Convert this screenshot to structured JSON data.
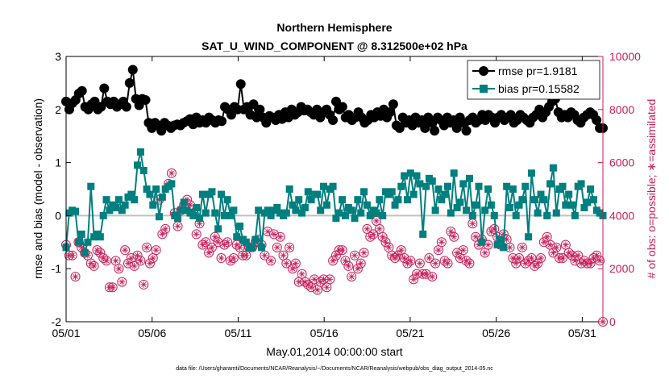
{
  "chart_data": {
    "type": "line",
    "title": "Northern Hemisphere",
    "subtitle": "SAT_U_WIND_COMPONENT @ 8.312500e+02 hPa",
    "xlabel": "May.01,2014 00:00:00 start",
    "ylabel": "rmse and bias (model - observation)",
    "ylabel_right": "# of obs: o=possible; ∗=assimilated",
    "xlim": [
      0,
      31.2
    ],
    "ylim": [
      -2,
      3
    ],
    "ylim_right": [
      0,
      10000
    ],
    "x_tick_values": [
      0,
      5,
      10,
      15,
      20,
      25,
      30
    ],
    "x_tick_labels": [
      "05/01",
      "05/06",
      "05/11",
      "05/16",
      "05/21",
      "05/26",
      "05/31"
    ],
    "y_ticks": [
      "-2",
      "-1",
      "0",
      "1",
      "2",
      "3"
    ],
    "y_ticks_right": [
      "0",
      "2000",
      "4000",
      "6000",
      "8000",
      "10000"
    ],
    "legend": [
      "rmse pr=1.9181",
      "bias pr=0.15582"
    ],
    "footnote": "data file: /Users/gharamti/Documents/NCAR/Reanalysis/~/Documents/NCAR/Reanalysis/webpub/obs_diag_output_2014-05.nc",
    "series": [
      {
        "name": "rmse",
        "color": "#000000",
        "values": [
          2.15,
          2.0,
          2.12,
          2.18,
          2.3,
          2.35,
          2.05,
          2.0,
          2.1,
          2.15,
          2.0,
          2.05,
          2.4,
          2.15,
          2.1,
          2.15,
          2.05,
          2.1,
          2.15,
          2.05,
          2.5,
          2.75,
          2.2,
          2.08,
          2.2,
          2.18,
          1.75,
          1.65,
          1.75,
          1.7,
          1.6,
          1.75,
          1.7,
          1.65,
          1.7,
          1.72,
          1.7,
          1.75,
          1.78,
          1.82,
          1.72,
          1.85,
          1.75,
          1.8,
          1.75,
          1.85,
          1.8,
          1.75,
          1.8,
          1.78,
          2.05,
          2.0,
          1.9,
          2.05,
          2.0,
          2.48,
          2.0,
          2.05,
          1.9,
          2.1,
          1.85,
          2.0,
          1.85,
          1.75,
          1.88,
          1.85,
          1.8,
          1.9,
          1.82,
          1.95,
          1.85,
          2.0,
          1.9,
          1.95,
          2.05,
          1.98,
          2.0,
          1.95,
          1.9,
          2.0,
          1.85,
          1.95,
          2.0,
          1.9,
          1.8,
          2.15,
          2.0,
          2.05,
          1.85,
          1.9,
          1.8,
          1.85,
          1.95,
          1.85,
          1.75,
          1.8,
          1.9,
          1.85,
          1.95,
          1.88,
          2.0,
          1.85,
          1.95,
          2.1,
          1.7,
          1.65,
          1.85,
          1.75,
          1.8,
          1.7,
          1.85,
          1.75,
          1.8,
          1.65,
          1.85,
          1.75,
          1.6,
          1.85,
          1.8,
          1.7,
          1.85,
          1.75,
          1.8,
          1.65,
          1.85,
          1.75,
          1.6,
          1.8,
          1.85,
          1.75,
          1.8,
          1.9,
          1.8,
          1.9,
          1.85,
          1.75,
          1.85,
          1.9,
          1.8,
          1.85,
          1.9,
          1.75,
          1.8,
          1.9,
          1.85,
          1.8,
          1.75,
          1.85,
          1.9,
          2.0,
          1.85,
          1.95,
          2.05,
          2.15,
          2.2,
          1.95,
          1.85,
          1.9,
          1.85,
          1.95,
          1.9,
          1.8,
          1.75,
          1.85,
          1.9,
          1.95,
          1.9,
          1.8,
          1.65,
          1.65
        ]
      },
      {
        "name": "bias",
        "color": "#007f7f",
        "values": [
          -0.6,
          0.05,
          0.1,
          0.08,
          -0.5,
          -0.35,
          -0.7,
          -0.5,
          0.55,
          -0.4,
          -0.35,
          -0.4,
          0.0,
          0.3,
          0.1,
          0.2,
          0.15,
          0.3,
          0.1,
          0.2,
          0.35,
          0.4,
          0.3,
          0.95,
          1.2,
          0.85,
          0.5,
          0.4,
          0.2,
          0.5,
          -0.02,
          0.35,
          0.5,
          0.55,
          0.6,
          0.0,
          -0.05,
          0.1,
          0.25,
          0.1,
          0.05,
          0.0,
          0.15,
          -0.05,
          0.4,
          0.05,
          0.4,
          0.45,
          0.05,
          -0.25,
          0.4,
          0.0,
          0.3,
          0.0,
          0.1,
          -0.4,
          -0.2,
          -0.45,
          -0.5,
          -0.6,
          -0.6,
          -0.45,
          0.1,
          -0.6,
          0.05,
          0.1,
          0.0,
          0.1,
          0.15,
          0.05,
          0.0,
          0.05,
          0.5,
          0.2,
          0.1,
          0.3,
          0.05,
          0.15,
          0.45,
          0.3,
          0.4,
          0.4,
          0.1,
          0.55,
          0.2,
          0.5,
          0.55,
          -0.05,
          0.05,
          0.3,
          0.0,
          0.15,
          0.1,
          -0.05,
          0.3,
          0.05,
          0.45,
          0.2,
          0.0,
          0.1,
          0.05,
          0.3,
          0.0,
          0.45,
          0.4,
          0.45,
          0.2,
          0.3,
          0.55,
          0.75,
          0.3,
          0.8,
          0.4,
          0.75,
          0.6,
          -0.35,
          0.55,
          0.7,
          0.65,
          0.1,
          0.5,
          0.3,
          0.4,
          0.55,
          0.05,
          0.8,
          0.15,
          0.25,
          0.6,
          0.1,
          0.7,
          0.0,
          0.2,
          0.55,
          -0.5,
          0.1,
          0.5,
          0.2,
          0.0,
          -0.55,
          -0.45,
          -0.6,
          0.55,
          0.15,
          0.5,
          0.0,
          0.2,
          0.3,
          0.55,
          -0.4,
          0.8,
          0.3,
          0.05,
          0.4,
          0.3,
          0.0,
          0.6,
          0.9,
          0.05,
          0.5,
          0.55,
          0.2,
          0.4,
          0.2,
          0.0,
          0.55,
          0.6,
          0.15,
          0.25,
          0.5,
          0.3,
          0.1,
          0.05,
          0.0
        ]
      },
      {
        "name": "obs count (possible / assimilated)",
        "color": "#c81e5a",
        "values": [
          2900,
          2500,
          2500,
          1700,
          3000,
          2800,
          2600,
          2500,
          2200,
          2100,
          2700,
          2600,
          2400,
          2300,
          1300,
          1300,
          2300,
          2000,
          1500,
          2700,
          2200,
          2400,
          2100,
          2500,
          2300,
          1400,
          2800,
          2200,
          2400,
          2700,
          4600,
          3300,
          3500,
          5200,
          5600,
          4100,
          3600,
          4200,
          4400,
          4600,
          4400,
          4100,
          3300,
          3700,
          2900,
          3000,
          2600,
          2800,
          3200,
          3000,
          2400,
          2900,
          3000,
          2300,
          2400,
          2900,
          2800,
          2500,
          2500,
          2800,
          2800,
          3000,
          3100,
          2900,
          2500,
          3400,
          2300,
          3300,
          2800,
          3200,
          2500,
          2200,
          2800,
          2000,
          2200,
          1500,
          1800,
          1500,
          1400,
          1300,
          1600,
          1200,
          1500,
          1600,
          1300,
          1600,
          2300,
          2500,
          2700,
          2700,
          2300,
          2100,
          1700,
          2500,
          2000,
          2200,
          2600,
          3500,
          3200,
          3300,
          3800,
          3500,
          3200,
          3000,
          2800,
          2500,
          2400,
          2500,
          2700,
          2400,
          2200,
          2300,
          1600,
          1800,
          2200,
          1800,
          1800,
          2400,
          1700,
          2200,
          2700,
          3000,
          2300,
          2200,
          3400,
          3200,
          2600,
          2400,
          2700,
          2300,
          2200,
          3700,
          3200,
          2900,
          3100,
          2600,
          2900,
          3400,
          3500,
          3200,
          2900,
          3300,
          3100,
          2800,
          2400,
          2200,
          2400,
          2800,
          2200,
          2300,
          2400,
          2100,
          2200,
          2400,
          3000,
          3200,
          2900,
          2600,
          2800,
          2400,
          2400,
          2900,
          2600,
          2500,
          2300,
          2500,
          2200,
          2300,
          2200,
          2200,
          2400,
          2500,
          2300,
          0
        ]
      }
    ]
  }
}
